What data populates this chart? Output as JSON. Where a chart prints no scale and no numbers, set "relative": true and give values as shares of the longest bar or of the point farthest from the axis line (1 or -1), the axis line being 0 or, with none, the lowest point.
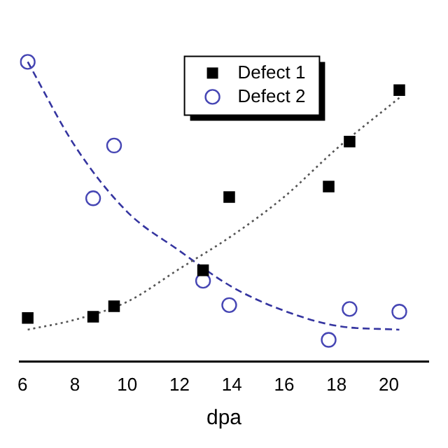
{
  "chart_data": {
    "type": "scatter",
    "xlabel": "dpa",
    "relative": true,
    "xlim": [
      5.9,
      21.5
    ],
    "xticks": [
      6,
      8,
      10,
      12,
      14,
      16,
      18,
      20
    ],
    "legend": "top",
    "grid": false,
    "series": [
      {
        "name": "Defect 1",
        "type": "scatter",
        "marker": "square",
        "color": "#000000",
        "x": [
          6.2,
          8.7,
          9.5,
          12.9,
          13.9,
          17.7,
          18.5,
          20.4
        ],
        "values": [
          0.146,
          0.15,
          0.185,
          0.305,
          0.549,
          0.584,
          0.734,
          0.906
        ]
      },
      {
        "name": "Defect 2",
        "type": "scatter",
        "marker": "circle",
        "color": "#4646b4",
        "x": [
          6.2,
          8.7,
          9.5,
          12.9,
          13.9,
          17.7,
          18.5,
          20.4
        ],
        "values": [
          1,
          0.545,
          0.721,
          0.27,
          0.189,
          0.073,
          0.176,
          0.167
        ]
      },
      {
        "type": "line",
        "marker": "none",
        "line_style": "dotted",
        "color": "#555555",
        "x": [
          6.2,
          8,
          10,
          12,
          14,
          16,
          18,
          20.4
        ],
        "values": [
          0.107,
          0.14,
          0.2,
          0.31,
          0.42,
          0.55,
          0.71,
          0.88
        ]
      },
      {
        "type": "line",
        "marker": "none",
        "line_style": "dashed",
        "color": "#3535a0",
        "x": [
          6.2,
          8,
          10,
          12,
          14,
          16,
          18,
          20.4
        ],
        "values": [
          1,
          0.72,
          0.5,
          0.37,
          0.25,
          0.17,
          0.12,
          0.107
        ]
      }
    ]
  }
}
